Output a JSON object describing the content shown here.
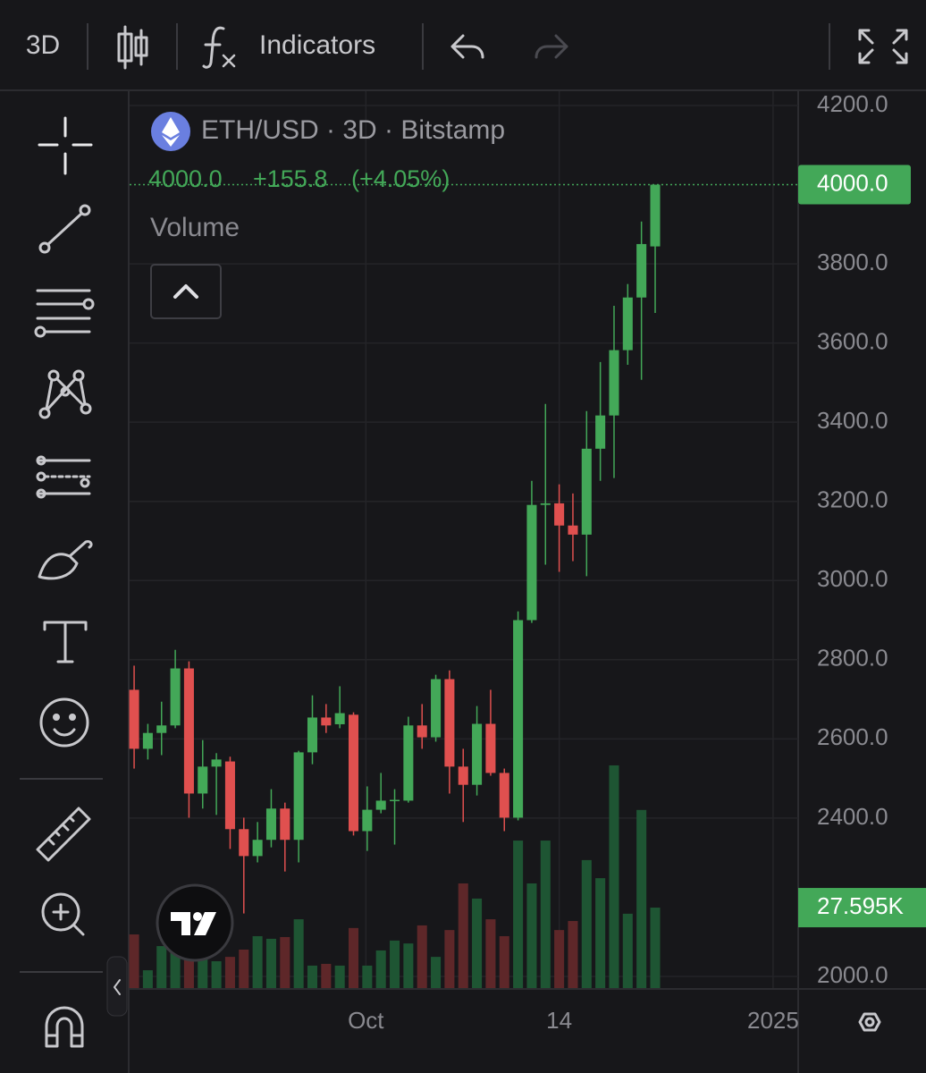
{
  "toolbar": {
    "interval": "3D",
    "indicators": "Indicators"
  },
  "chart_data": {
    "type": "candlestick",
    "symbol_line": "ETH/USD · 3D · Bitstamp",
    "quote": {
      "close": "4000.0",
      "change": "+155.8",
      "change_pct": "(+4.05%)"
    },
    "volume_title": "Volume",
    "up_color": "#43a858",
    "down_color": "#e0504f",
    "volume_up_color": "#1e5533",
    "volume_down_color": "#5e2729",
    "open": [
      2724,
      2575,
      2615,
      2634,
      2778,
      2462,
      2530,
      2543,
      2372,
      2304,
      2345,
      2424,
      2345,
      2566,
      2654,
      2637,
      2661,
      2367,
      2421,
      2444,
      2444,
      2634,
      2604,
      2751,
      2530,
      2484,
      2638,
      2514,
      2401,
      2900,
      3191,
      3195,
      3139,
      3116,
      3333,
      3417,
      3582,
      3715,
      3844
    ],
    "high": [
      2785,
      2638,
      2694,
      2825,
      2796,
      2597,
      2564,
      2555,
      2401,
      2390,
      2473,
      2439,
      2570,
      2710,
      2688,
      2733,
      2667,
      2480,
      2514,
      2473,
      2656,
      2688,
      2762,
      2773,
      2575,
      2683,
      2724,
      2525,
      2922,
      3252,
      3446,
      3243,
      3220,
      3428,
      3552,
      3694,
      3749,
      3907,
      4000
    ],
    "low": [
      2525,
      2548,
      2559,
      2627,
      2401,
      2424,
      2408,
      2322,
      2159,
      2288,
      2326,
      2265,
      2288,
      2536,
      2615,
      2627,
      2356,
      2317,
      2412,
      2333,
      2439,
      2575,
      2593,
      2462,
      2390,
      2457,
      2507,
      2367,
      2394,
      2893,
      3040,
      3022,
      3049,
      3011,
      3252,
      3259,
      3545,
      3507,
      3676
    ],
    "close": [
      2575,
      2615,
      2634,
      2778,
      2462,
      2530,
      2548,
      2372,
      2304,
      2345,
      2424,
      2345,
      2566,
      2654,
      2634,
      2665,
      2367,
      2421,
      2444,
      2446,
      2634,
      2604,
      2751,
      2530,
      2484,
      2638,
      2514,
      2401,
      2900,
      3191,
      3195,
      3139,
      3116,
      3333,
      3417,
      3582,
      3715,
      3850,
      4000
    ],
    "volume": [
      18.4,
      6.1,
      14.4,
      19.9,
      18.4,
      13.8,
      9.2,
      10.7,
      13.2,
      17.8,
      16.9,
      17.5,
      23.6,
      7.7,
      8.3,
      7.7,
      20.6,
      7.7,
      12.9,
      16.3,
      15.3,
      21.5,
      10.7,
      19.9,
      35.9,
      30.7,
      23.6,
      17.8,
      50.6,
      35.9,
      50.6,
      19.9,
      23.0,
      43.9,
      37.7,
      76.4,
      25.5,
      61.1,
      27.595
    ],
    "last_price_label": "4000.0",
    "last_volume_label": "27.595K",
    "xlim": [
      -0.33,
      48.43
    ],
    "xticks": [
      {
        "value": 16.9,
        "label": "Oct"
      },
      {
        "value": 31,
        "label": "14"
      },
      {
        "value": 46.6,
        "label": "2025"
      }
    ],
    "ylim": [
      1970.6,
      4236.1
    ],
    "yticks": [
      {
        "value": 4200,
        "label": "4200.0"
      },
      {
        "value": 3800,
        "label": "3800.0"
      },
      {
        "value": 3600,
        "label": "3600.0"
      },
      {
        "value": 3400,
        "label": "3400.0"
      },
      {
        "value": 3200,
        "label": "3200.0"
      },
      {
        "value": 3000,
        "label": "3000.0"
      },
      {
        "value": 2800,
        "label": "2800.0"
      },
      {
        "value": 2600,
        "label": "2600.0"
      },
      {
        "value": 2400,
        "label": "2400.0"
      },
      {
        "value": 2000,
        "label": "2000.0"
      }
    ],
    "volume_ylim": [
      0,
      307.7
    ],
    "grid": true
  }
}
